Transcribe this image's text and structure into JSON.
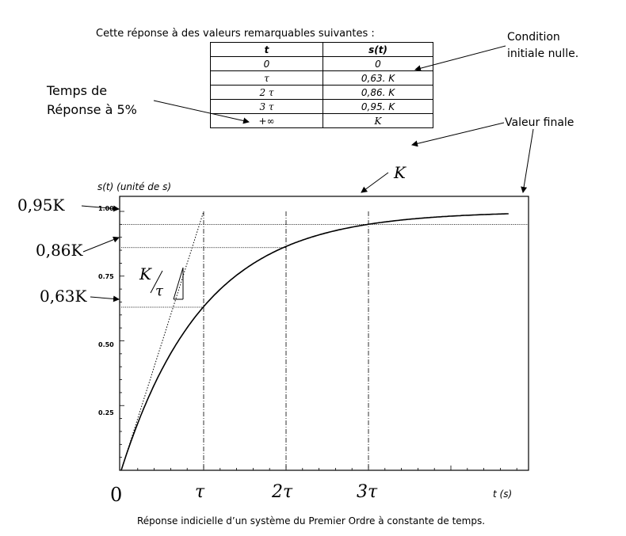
{
  "intro_text": "Cette réponse à des valeurs remarquables suivantes :",
  "table": {
    "headers": [
      "t",
      "s(t)"
    ],
    "rows": [
      [
        "0",
        "0"
      ],
      [
        "τ",
        "0,63. K"
      ],
      [
        "2 τ",
        "0,86. K"
      ],
      [
        "3 τ",
        "0,95. K"
      ],
      [
        "+∞",
        "K"
      ]
    ]
  },
  "notes": {
    "response_time_line1": "Temps de",
    "response_time_line2": "Réponse à 5%",
    "initial_line1": "Condition",
    "initial_line2": "initiale nulle.",
    "final_value": "Valeur finale"
  },
  "caption": "Réponse indicielle  d’un système du Premier Ordre à constante de temps.",
  "chart_data": {
    "type": "line",
    "title": "",
    "xlabel": "t (s)",
    "ylabel": "s(t) (unité de s)",
    "ylim": [
      0,
      1.05
    ],
    "y_ticks": [
      "0.25",
      "0.50",
      "0.75",
      "1.00"
    ],
    "x_ticks": [
      "0",
      "τ",
      "2τ",
      "3τ"
    ],
    "x_unit_ticks": [
      0,
      1,
      2,
      3
    ],
    "xlim_in_tau": [
      0,
      4.7
    ],
    "series": [
      {
        "function": "K(1 - e^(-t/τ))",
        "K": 1
      }
    ],
    "tangent_at_origin": {
      "slope_label": "K/τ",
      "reaches_K_at": 1
    },
    "markers": [
      {
        "label": "0,63K",
        "t": 1,
        "value": 0.63
      },
      {
        "label": "0,86K",
        "t": 2,
        "value": 0.86
      },
      {
        "label": "0,95K",
        "t": 3,
        "value": 0.95
      }
    ],
    "asymptote_label": "K",
    "slope_label_num": "K",
    "slope_label_den": "τ"
  }
}
